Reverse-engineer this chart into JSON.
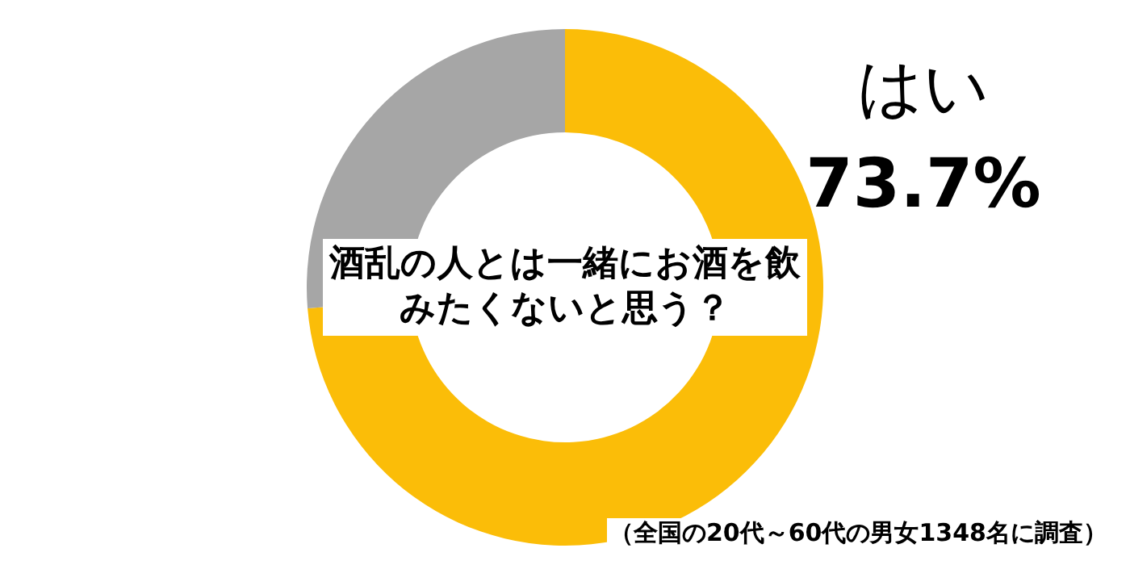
{
  "chart_data": {
    "type": "donut",
    "title": "酒乱の人とは一緒にお酒を飲みたくないと思う？",
    "categories": [
      "はい",
      null
    ],
    "values": [
      73.7,
      26.3
    ],
    "colors": [
      "#fbbd08",
      "#a6a6a6"
    ],
    "value_labels": [
      "73.7%",
      null
    ],
    "legend": false,
    "annotations": [
      "（全国の20代～60代の男女1348名に調査）"
    ]
  }
}
